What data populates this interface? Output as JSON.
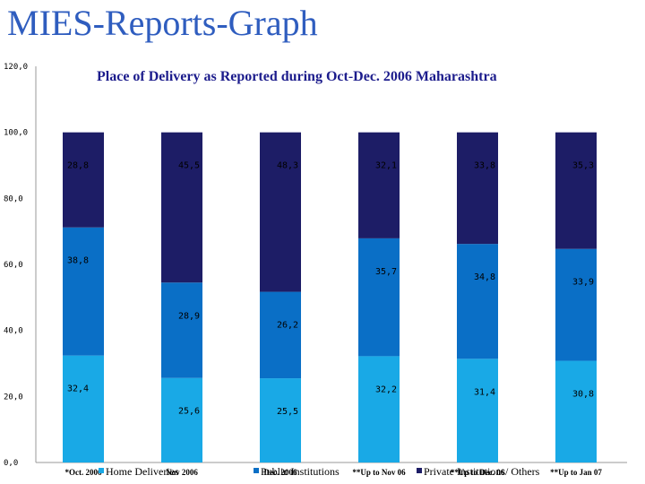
{
  "slide": {
    "title": "MIES-Reports-Graph"
  },
  "chart_data": {
    "type": "bar",
    "stacked": true,
    "title": "Place of Delivery as Reported during Oct-Dec. 2006 Maharashtra",
    "categories": [
      "*Oct. 2006",
      "Nov 2006",
      "Dec. 2006",
      "**Up to Nov 06",
      "**Up to Dec. 06",
      "**Up to Jan 07"
    ],
    "series": [
      {
        "name": "Home Deliveries",
        "values": [
          32.4,
          25.6,
          25.5,
          32.2,
          31.4,
          30.8
        ],
        "labels": [
          "32,4",
          "25,6",
          "25,5",
          "32,2",
          "31,4",
          "30,8"
        ],
        "color": "#19a9e6"
      },
      {
        "name": "Public Institutions",
        "values": [
          38.8,
          28.9,
          26.2,
          35.7,
          34.8,
          33.9
        ],
        "labels": [
          "38,8",
          "28,9",
          "26,2",
          "35,7",
          "34,8",
          "33,9"
        ],
        "color": "#0a6fc6"
      },
      {
        "name": "Private Institutions/ Others",
        "values": [
          28.8,
          45.5,
          48.3,
          32.1,
          33.8,
          35.3
        ],
        "labels": [
          "28,8",
          "45,5",
          "48,3",
          "32,1",
          "33,8",
          "35,3"
        ],
        "color": "#1d1d66"
      }
    ],
    "y_ticks": [
      "0,0",
      "20,0",
      "40,0",
      "60,0",
      "80,0",
      "100,0",
      "120,0"
    ],
    "ylim": [
      0,
      120
    ],
    "grid": false,
    "legend_position": "bottom"
  }
}
